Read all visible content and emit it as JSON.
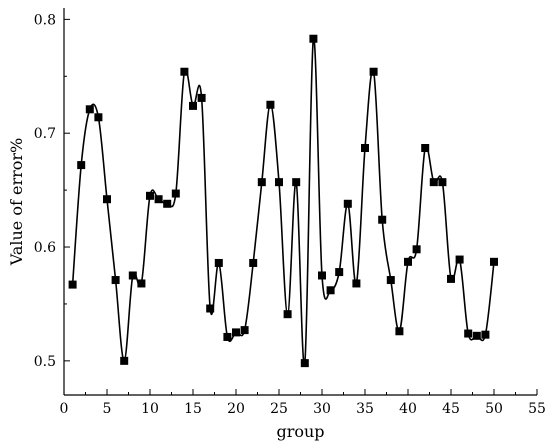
{
  "chart_data": {
    "type": "line",
    "xlabel": "group",
    "ylabel": "Value of error%",
    "xlim": [
      0,
      55
    ],
    "ylim": [
      0.47,
      0.81
    ],
    "x_ticks": [
      0,
      5,
      10,
      15,
      20,
      25,
      30,
      35,
      40,
      45,
      50,
      55
    ],
    "y_ticks": [
      0.5,
      0.6,
      0.7,
      0.8
    ],
    "x_tick_labels": [
      "0",
      "5",
      "10",
      "15",
      "20",
      "25",
      "30",
      "35",
      "40",
      "45",
      "50",
      "55"
    ],
    "y_tick_labels": [
      "0.5",
      "0.6",
      "0.7",
      "0.8"
    ],
    "grid": false,
    "series": [
      {
        "marker": "square",
        "line": "smooth",
        "color": "#000000",
        "x": [
          1,
          2,
          3,
          4,
          5,
          6,
          7,
          8,
          9,
          10,
          11,
          12,
          13,
          14,
          15,
          16,
          17,
          18,
          19,
          20,
          21,
          22,
          23,
          24,
          25,
          26,
          27,
          28,
          29,
          30,
          31,
          32,
          33,
          34,
          35,
          36,
          37,
          38,
          39,
          40,
          41,
          42,
          43,
          44,
          45,
          46,
          47,
          48,
          49,
          50
        ],
        "y": [
          0.567,
          0.672,
          0.721,
          0.714,
          0.642,
          0.571,
          0.5,
          0.575,
          0.568,
          0.645,
          0.642,
          0.638,
          0.647,
          0.754,
          0.724,
          0.731,
          0.546,
          0.586,
          0.521,
          0.525,
          0.527,
          0.586,
          0.657,
          0.725,
          0.657,
          0.541,
          0.657,
          0.498,
          0.783,
          0.575,
          0.562,
          0.578,
          0.638,
          0.568,
          0.687,
          0.754,
          0.624,
          0.571,
          0.526,
          0.587,
          0.598,
          0.687,
          0.657,
          0.657,
          0.572,
          0.589,
          0.524,
          0.522,
          0.523,
          0.587
        ]
      }
    ]
  }
}
